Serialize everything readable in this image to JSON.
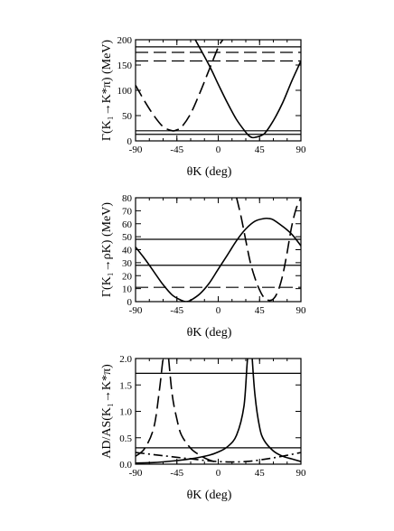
{
  "chart_data": [
    {
      "type": "line",
      "ylabel": "Γ(K₁→K*π) (MeV)",
      "xlabel": "θK (deg)",
      "xlim": [
        -90,
        90
      ],
      "ylim": [
        0,
        200
      ],
      "x_ticks": [
        "-90",
        "-45",
        "0",
        "45",
        "90"
      ],
      "y_ticks": [
        "0",
        "50",
        "100",
        "150",
        "200"
      ],
      "series": [
        {
          "style": "solid",
          "x": [
            -25,
            -10,
            0,
            10,
            20,
            30,
            35,
            40,
            50,
            60,
            70,
            80,
            90
          ],
          "y": [
            200,
            150,
            112,
            75,
            42,
            17,
            8,
            7,
            14,
            40,
            75,
            118,
            158
          ]
        },
        {
          "style": "dashed",
          "x": [
            -90,
            -80,
            -70,
            -60,
            -50,
            -45,
            -40,
            -30,
            -20,
            -10,
            0,
            5
          ],
          "y": [
            110,
            78,
            50,
            28,
            20,
            22,
            27,
            54,
            95,
            140,
            185,
            200
          ]
        }
      ],
      "hlines": [
        {
          "style": "solid",
          "y": 186
        },
        {
          "style": "solid",
          "y": 20
        },
        {
          "style": "solid",
          "y": 13
        },
        {
          "style": "dashed",
          "y": 175
        },
        {
          "style": "dashed",
          "y": 158
        }
      ]
    },
    {
      "type": "line",
      "ylabel": "Γ(K₁→ρK) (MeV)",
      "xlabel": "θK (deg)",
      "xlim": [
        -90,
        90
      ],
      "ylim": [
        0,
        80
      ],
      "x_ticks": [
        "-90",
        "-45",
        "0",
        "45",
        "90"
      ],
      "y_ticks": [
        "0",
        "10",
        "20",
        "30",
        "40",
        "50",
        "60",
        "70",
        "80"
      ],
      "series": [
        {
          "style": "solid",
          "x": [
            -90,
            -80,
            -70,
            -60,
            -50,
            -40,
            -35,
            -30,
            -20,
            -10,
            0,
            10,
            20,
            30,
            40,
            50,
            55,
            60,
            70,
            80,
            90
          ],
          "y": [
            42,
            33,
            23,
            13,
            5,
            1,
            0,
            1,
            6,
            14,
            25,
            36,
            47,
            56,
            62,
            64,
            64,
            63,
            58,
            52,
            43
          ]
        },
        {
          "style": "dashed",
          "x": [
            20,
            25,
            30,
            35,
            40,
            45,
            50,
            55,
            60,
            65,
            70,
            75,
            80,
            85,
            90
          ],
          "y": [
            80,
            65,
            47,
            30,
            18,
            9,
            3,
            1,
            2,
            8,
            20,
            38,
            58,
            72,
            80
          ]
        }
      ],
      "hlines": [
        {
          "style": "solid",
          "y": 48
        },
        {
          "style": "solid",
          "y": 28
        },
        {
          "style": "dashed",
          "y": 11
        }
      ]
    },
    {
      "type": "line",
      "ylabel": "AD/AS(K₁→K*π)",
      "xlabel": "θK (deg)",
      "xlim": [
        -90,
        90
      ],
      "ylim": [
        0,
        2
      ],
      "x_ticks": [
        "-90",
        "-45",
        "0",
        "45",
        "90"
      ],
      "y_ticks": [
        "0.0",
        "0.5",
        "1.0",
        "1.5",
        "2.0"
      ],
      "series": [
        {
          "style": "solid",
          "x": [
            -90,
            -70,
            -50,
            -30,
            -10,
            0,
            10,
            20,
            28,
            32,
            35
          ],
          "y": [
            0.02,
            0.03,
            0.06,
            0.1,
            0.17,
            0.23,
            0.33,
            0.55,
            1.1,
            2.0,
            2.0
          ]
        },
        {
          "style": "solid",
          "x": [
            37,
            40,
            45,
            50,
            60,
            70,
            80,
            90
          ],
          "y": [
            2.0,
            1.3,
            0.7,
            0.45,
            0.25,
            0.15,
            0.1,
            0.05
          ]
        },
        {
          "style": "dashed",
          "x": [
            -90,
            -80,
            -70,
            -64,
            -60,
            -58
          ],
          "y": [
            0.15,
            0.3,
            0.7,
            1.4,
            2.0,
            2.0
          ]
        },
        {
          "style": "dashed",
          "x": [
            -54,
            -50,
            -45,
            -40,
            -30,
            -20,
            -10,
            0
          ],
          "y": [
            2.0,
            1.3,
            0.85,
            0.55,
            0.3,
            0.17,
            0.08,
            0.03
          ]
        },
        {
          "style": "dashdot",
          "x": [
            -90,
            -60,
            -30,
            0,
            30,
            60,
            90
          ],
          "y": [
            0.22,
            0.16,
            0.1,
            0.05,
            0.05,
            0.12,
            0.22
          ]
        }
      ],
      "hlines": [
        {
          "style": "solid",
          "y": 1.72
        },
        {
          "style": "solid",
          "y": 0.31
        }
      ]
    }
  ]
}
